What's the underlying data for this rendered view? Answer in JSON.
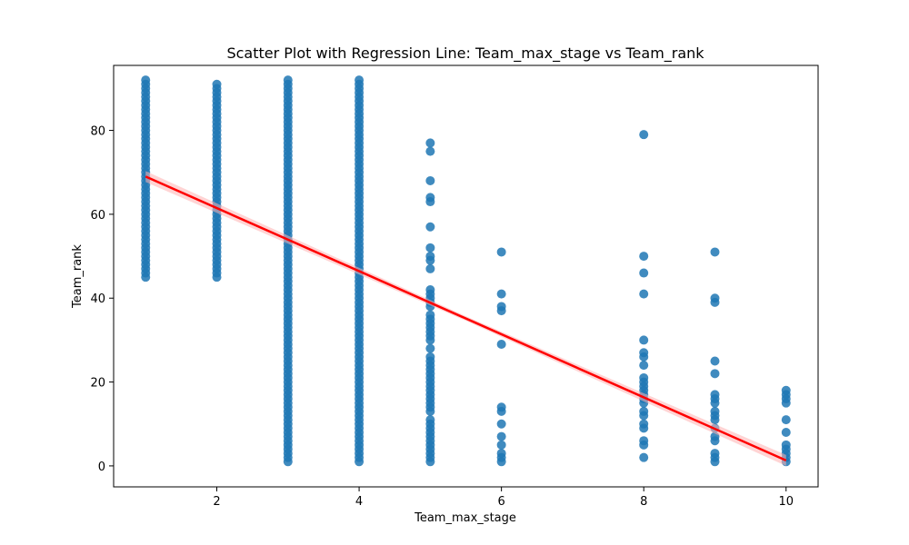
{
  "chart_data": {
    "type": "scatter",
    "title": "Scatter Plot with Regression Line: Team_max_stage vs Team_rank",
    "xlabel": "Team_max_stage",
    "ylabel": "Team_rank",
    "xlim": [
      0.55,
      10.45
    ],
    "ylim": [
      -5,
      95.5
    ],
    "xticks": [
      2,
      4,
      6,
      8,
      10
    ],
    "yticks": [
      0,
      20,
      40,
      60,
      80
    ],
    "grid": false,
    "point_color": "#1f77b4",
    "line_color": "#ff0000",
    "band_color": "#ffb0b0",
    "points": [
      {
        "x": 1,
        "ymin": 45,
        "ymax": 92
      },
      {
        "x": 2,
        "ymin": 45,
        "ymax": 91
      },
      {
        "x": 3,
        "ymin": 1,
        "ymax": 92
      },
      {
        "x": 4,
        "ymin": 1,
        "ymax": 92
      },
      {
        "x": 5,
        "y": [
          1,
          2,
          3,
          4,
          5,
          6,
          7,
          8,
          9,
          10,
          11,
          13,
          14,
          15,
          16,
          17,
          18,
          19,
          20,
          21,
          22,
          23,
          24,
          25,
          26,
          28,
          30,
          31,
          32,
          33,
          34,
          35,
          36,
          38,
          39,
          40,
          41,
          42,
          47,
          49,
          50,
          52,
          57,
          63,
          64,
          68,
          75,
          77
        ]
      },
      {
        "x": 6,
        "y": [
          1,
          2,
          3,
          5,
          7,
          10,
          13,
          14,
          29,
          37,
          38,
          41,
          51
        ]
      },
      {
        "x": 8,
        "y": [
          2,
          5,
          6,
          9,
          10,
          12,
          13,
          15,
          16,
          17,
          18,
          19,
          20,
          21,
          24,
          26,
          27,
          30,
          41,
          46,
          50,
          79
        ]
      },
      {
        "x": 9,
        "y": [
          1,
          2,
          3,
          6,
          7,
          9,
          11,
          12,
          13,
          15,
          16,
          17,
          22,
          25,
          39,
          40,
          51
        ]
      },
      {
        "x": 10,
        "y": [
          1,
          2,
          3,
          4,
          5,
          8,
          11,
          15,
          16,
          17,
          18
        ]
      }
    ],
    "regression": {
      "x": [
        1,
        10
      ],
      "y": [
        69,
        1.3
      ]
    }
  }
}
